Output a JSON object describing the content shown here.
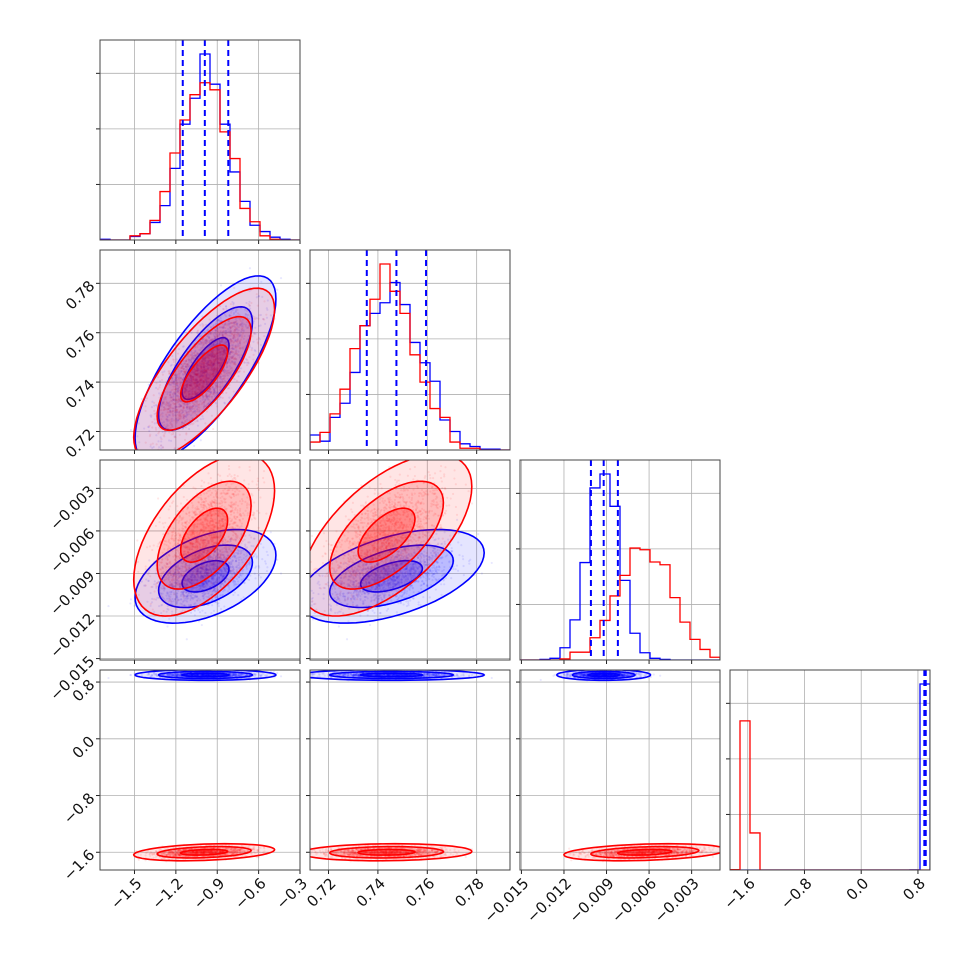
{
  "chart_data": {
    "type": "scatter",
    "variant": "corner-plot",
    "title": "",
    "grid": true,
    "params": [
      {
        "lim": [
          -1.75,
          -0.3
        ],
        "ticks": [
          -1.5,
          -1.2,
          -0.9,
          -0.6,
          -0.3
        ],
        "tick_labels": [
          "−1.5",
          "−1.2",
          "−0.9",
          "−0.6",
          "−0.3"
        ]
      },
      {
        "lim": [
          0.7125,
          0.7935
        ],
        "ticks": [
          0.72,
          0.74,
          0.76,
          0.78
        ],
        "tick_labels": [
          "0.72",
          "0.74",
          "0.76",
          "0.78"
        ]
      },
      {
        "lim": [
          -0.0151,
          -0.001
        ],
        "ticks": [
          -0.015,
          -0.012,
          -0.009,
          -0.006,
          -0.003
        ],
        "tick_labels": [
          "−0.015",
          "−0.012",
          "−0.009",
          "−0.006",
          "−0.003"
        ]
      },
      {
        "lim": [
          -1.85,
          0.97
        ],
        "ticks": [
          -1.6,
          -0.8,
          0.0,
          0.8
        ],
        "tick_labels": [
          "−1.6",
          "−0.8",
          "0.0",
          "0.8"
        ]
      }
    ],
    "series": [
      {
        "color": "#0000ff",
        "mean": [
          -0.985,
          0.7455,
          -0.0092,
          0.9
        ],
        "sd": [
          0.17,
          0.0125,
          0.0011,
          0.025
        ],
        "corr": [
          [
            1,
            0.75,
            0.45,
            0
          ],
          [
            0.75,
            1,
            0.5,
            0
          ],
          [
            0.45,
            0.5,
            1,
            0
          ],
          [
            0,
            0,
            0,
            1
          ]
        ],
        "quantiles": [
          [
            -1.15,
            -0.99,
            -0.82
          ],
          [
            0.7355,
            0.7475,
            0.7595
          ],
          [
            -0.0101,
            -0.0092,
            -0.0082
          ],
          [
            0.89,
            0.9,
            0.91
          ]
        ]
      },
      {
        "color": "#ff0000",
        "mean": [
          -0.995,
          0.7435,
          -0.0063,
          -1.6
        ],
        "sd": [
          0.17,
          0.0115,
          0.0019,
          0.04
        ],
        "corr": [
          [
            1,
            0.75,
            0.55,
            0.3
          ],
          [
            0.75,
            1,
            0.6,
            0.1
          ],
          [
            0.55,
            0.6,
            1,
            0.3
          ],
          [
            0.3,
            0.1,
            0.3,
            1
          ]
        ]
      }
    ],
    "quantile_line_color": "#0000ff"
  }
}
